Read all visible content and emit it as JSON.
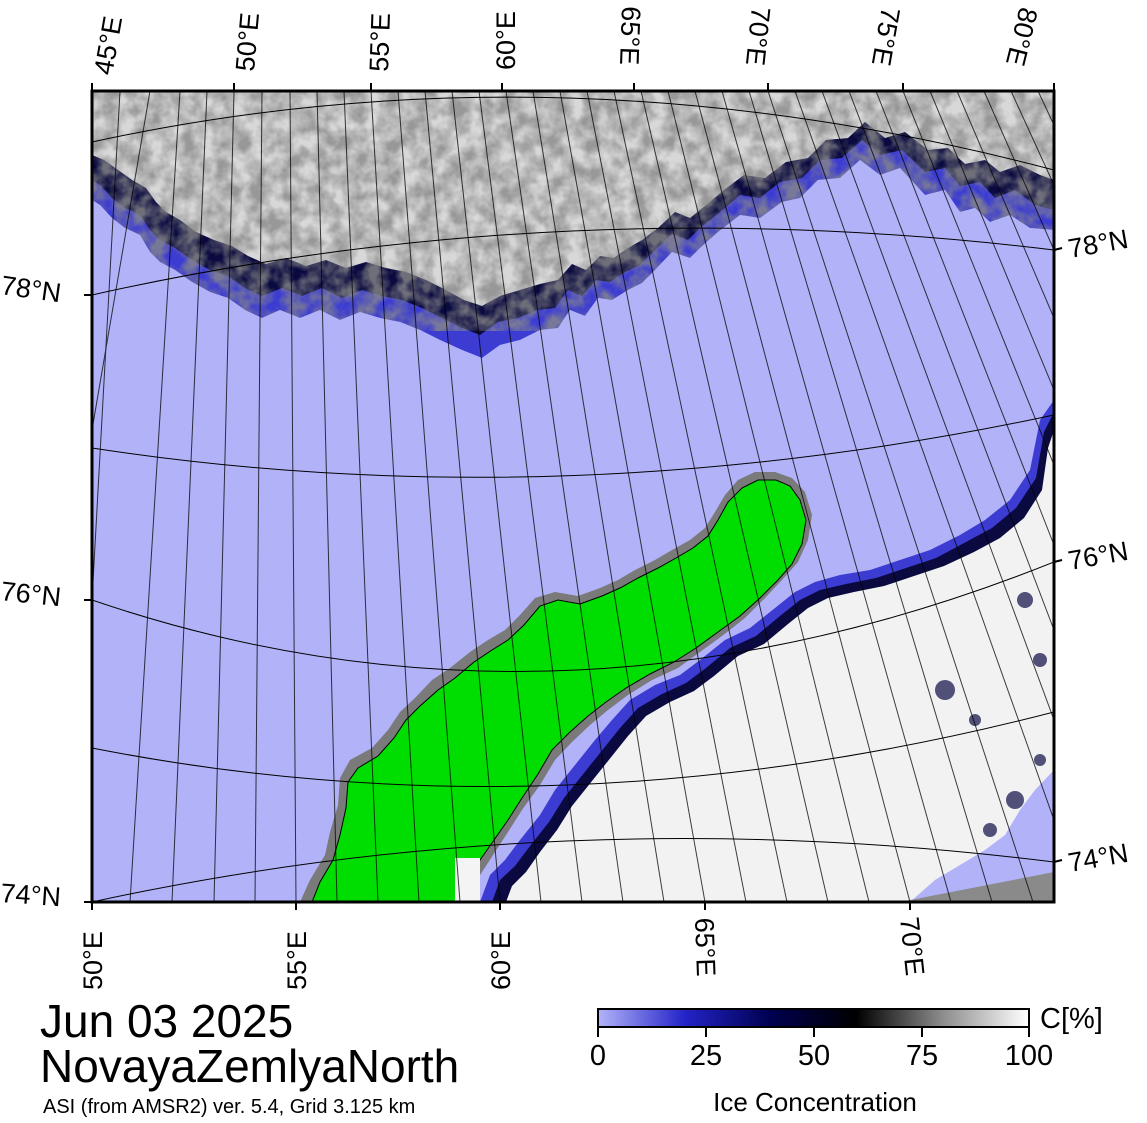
{
  "map": {
    "top_lon_labels": [
      "45°E",
      "50°E",
      "55°E",
      "60°E",
      "65°E",
      "70°E",
      "75°E",
      "80°E"
    ],
    "bottom_lon_labels": [
      "50°E",
      "55°E",
      "60°E",
      "65°E",
      "70°E"
    ],
    "left_lat_labels": [
      "78°N",
      "76°N",
      "74°N"
    ],
    "right_lat_labels": [
      "78°N",
      "76°N",
      "74°N"
    ],
    "colors": {
      "open_water": "#b1b2f8",
      "low_ice": "#3232d2",
      "mid_ice": "#0a0a3c",
      "high_ice": "#f2f2f2",
      "land": "#00dd00",
      "land_border": "#7a7a7a",
      "no_data": "#8a8a8a"
    }
  },
  "title": {
    "date": "Jun 03 2025",
    "region": "NovayaZemlyaNorth",
    "source": "ASI (from AMSR2) ver. 5.4,  Grid 3.125 km"
  },
  "colorbar": {
    "ticks": [
      "0",
      "25",
      "50",
      "75",
      "100"
    ],
    "unit": "C[%]",
    "title": "Ice Concentration",
    "gradient": [
      "#b1b2f8",
      "#2323c8",
      "#000050",
      "#000000",
      "#8c8c8c",
      "#ffffff"
    ]
  }
}
